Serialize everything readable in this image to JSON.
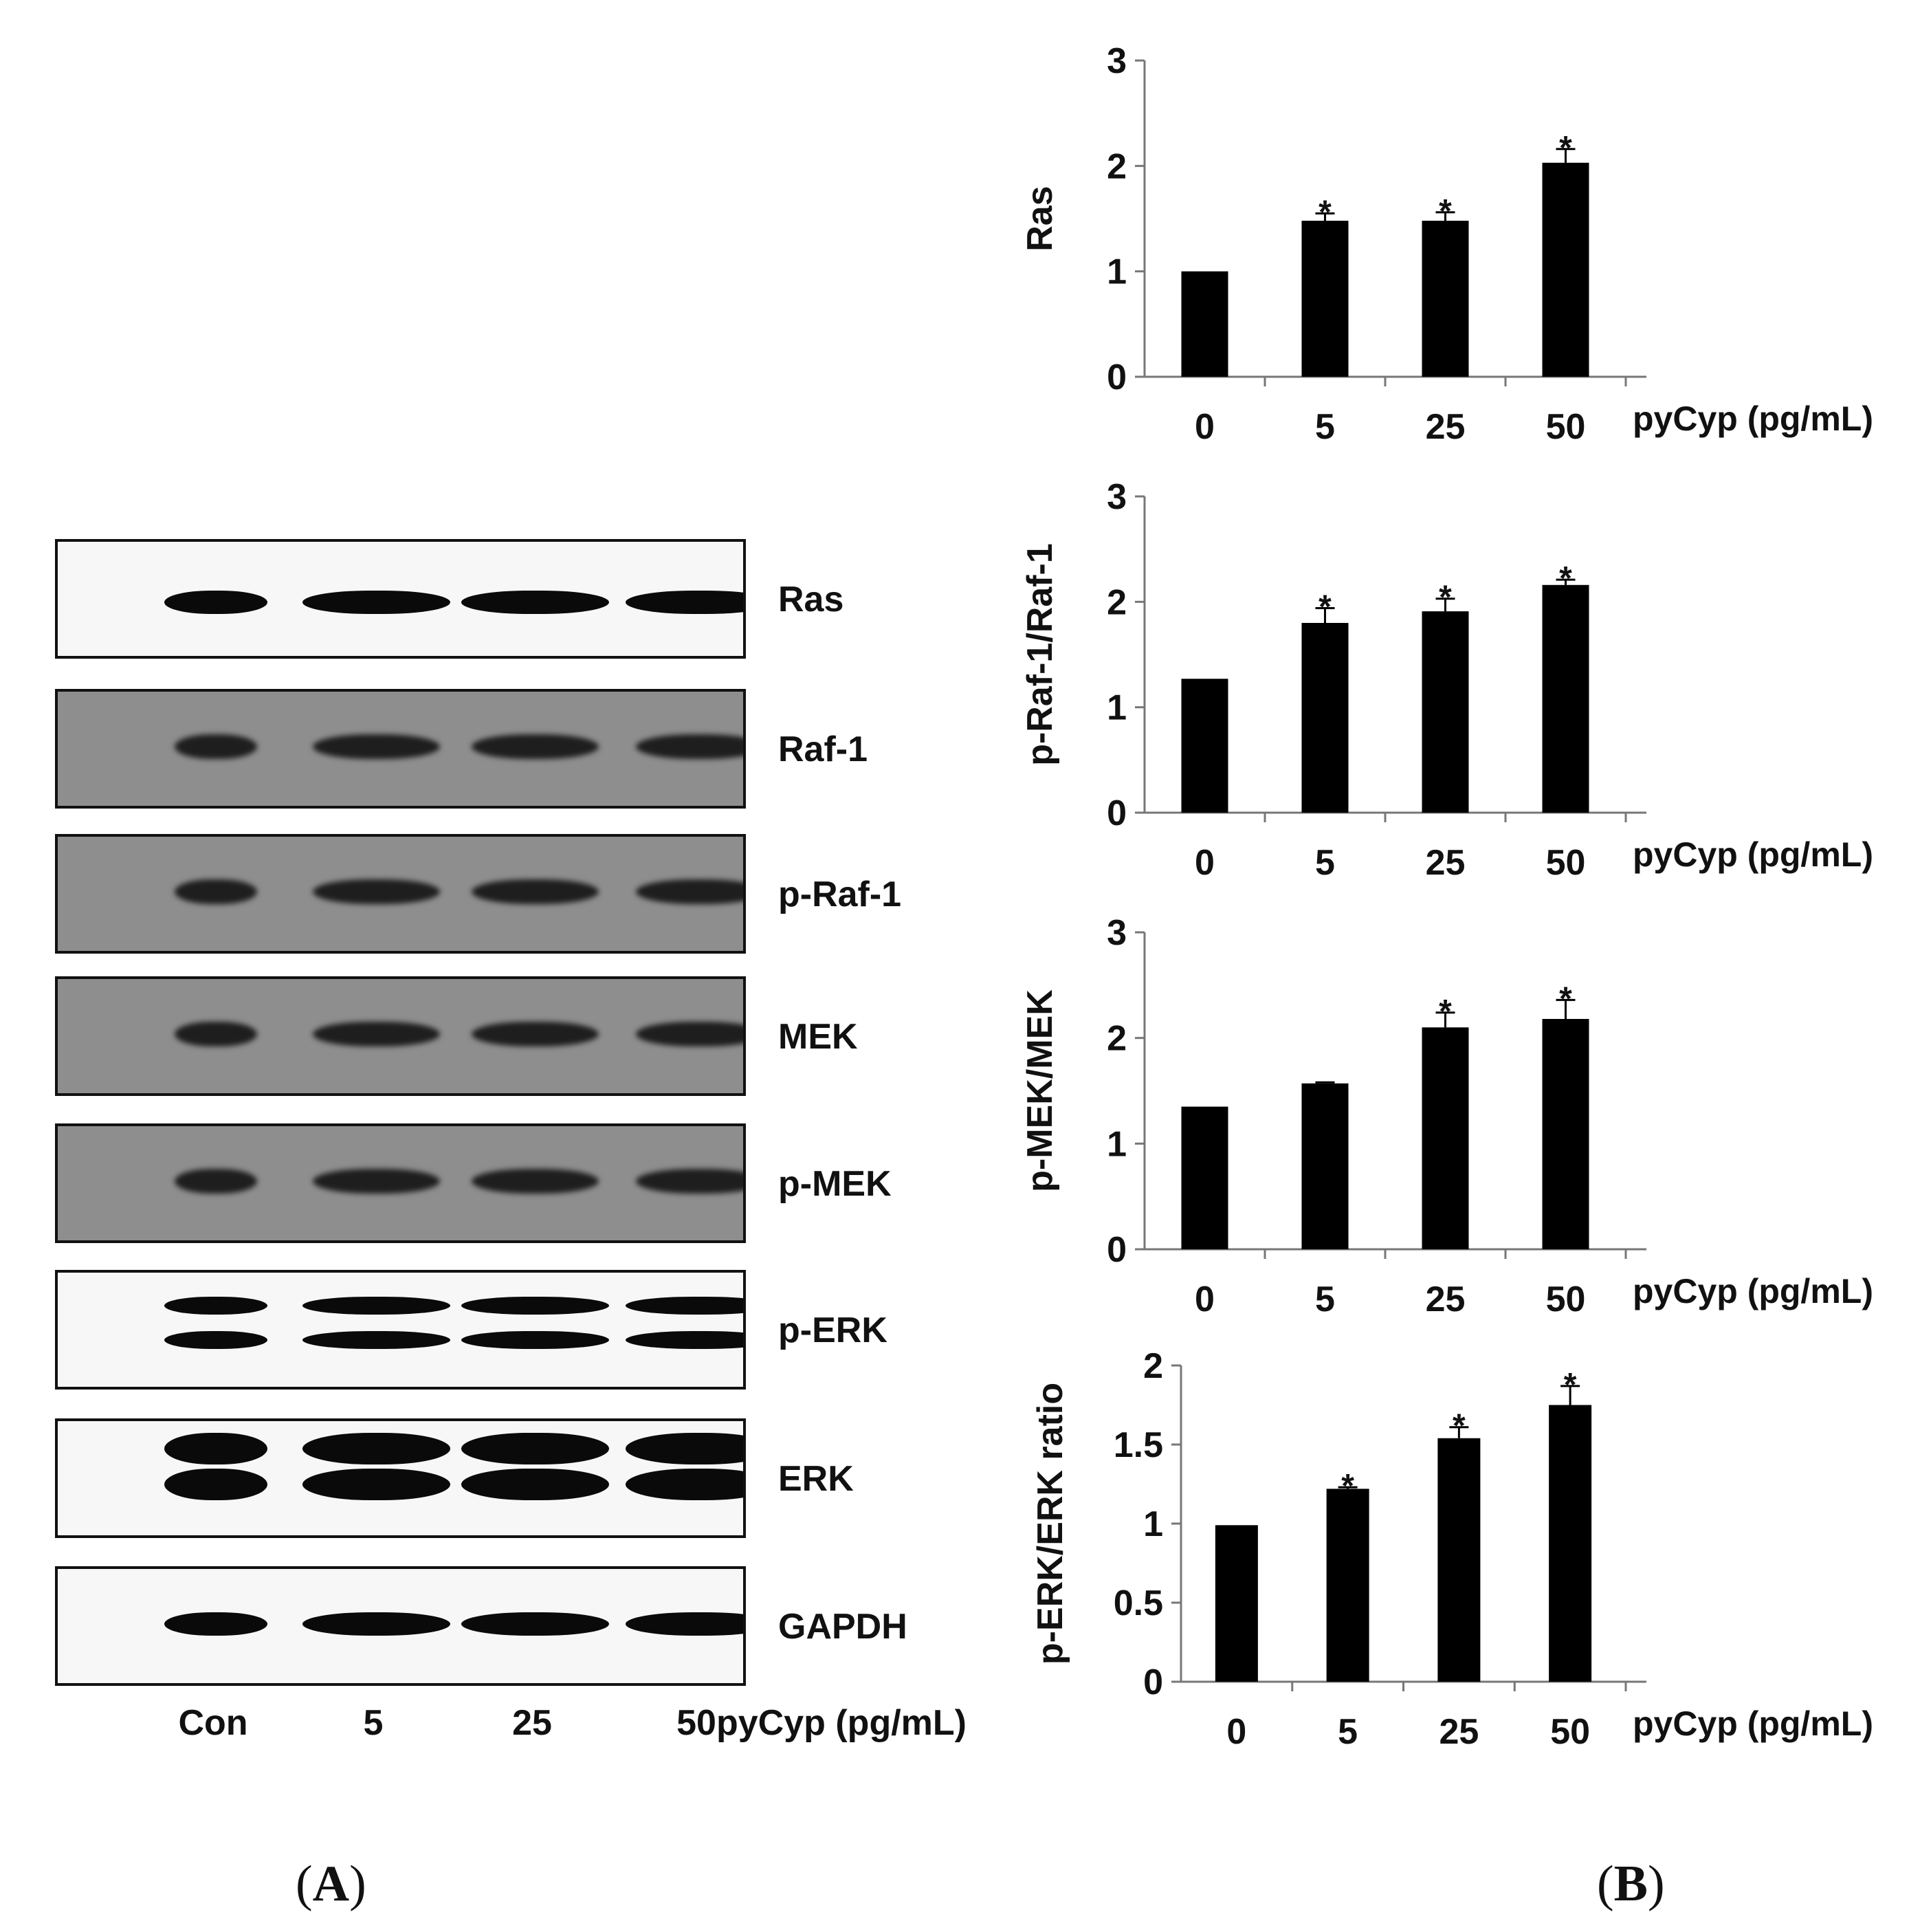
{
  "panel_a": {
    "letter": "A",
    "blots": [
      {
        "label": "Ras",
        "style": "white",
        "bands": 1
      },
      {
        "label": "Raf-1",
        "style": "gray",
        "bands": 1
      },
      {
        "label": "p-Raf-1",
        "style": "gray",
        "bands": 1
      },
      {
        "label": "MEK",
        "style": "gray",
        "bands": 1
      },
      {
        "label": "p-MEK",
        "style": "gray",
        "bands": 1
      },
      {
        "label": "p-ERK",
        "style": "white",
        "bands": 2
      },
      {
        "label": "ERK",
        "style": "white",
        "bands": 2
      },
      {
        "label": "GAPDH",
        "style": "white",
        "bands": 1
      }
    ],
    "lanes": [
      "Con",
      "5",
      "25",
      "50"
    ],
    "unit": "pyCyp (pg/mL)"
  },
  "panel_b": {
    "letter": "B"
  },
  "chart_data": [
    {
      "type": "bar",
      "categories": [
        "0",
        "5",
        "25",
        "50"
      ],
      "values": [
        1.0,
        1.48,
        1.48,
        2.03
      ],
      "errors": [
        0.0,
        0.07,
        0.08,
        0.13
      ],
      "significant": [
        false,
        true,
        true,
        true
      ],
      "ylabel": "Ras",
      "xlabel": "pyCyp (pg/mL)",
      "ylim": [
        0,
        3
      ],
      "yticks": [
        "0",
        "1",
        "2",
        "3"
      ],
      "grid": false
    },
    {
      "type": "bar",
      "categories": [
        "0",
        "5",
        "25",
        "50"
      ],
      "values": [
        1.27,
        1.8,
        1.91,
        2.16
      ],
      "errors": [
        0.0,
        0.14,
        0.12,
        0.05
      ],
      "significant": [
        false,
        true,
        true,
        true
      ],
      "ylabel": "p-Raf-1/Raf-1",
      "xlabel": "pyCyp (pg/mL)",
      "ylim": [
        0,
        3
      ],
      "yticks": [
        "0",
        "1",
        "2",
        "3"
      ],
      "grid": false
    },
    {
      "type": "bar",
      "categories": [
        "0",
        "5",
        "25",
        "50"
      ],
      "values": [
        1.35,
        1.57,
        2.1,
        2.18
      ],
      "errors": [
        0.0,
        0.01,
        0.14,
        0.18
      ],
      "significant": [
        false,
        false,
        true,
        true
      ],
      "ylabel": "p-MEK/MEK",
      "xlabel": "pyCyp (pg/mL)",
      "ylim": [
        0,
        3
      ],
      "yticks": [
        "0",
        "1",
        "2",
        "3"
      ],
      "grid": false
    },
    {
      "type": "bar",
      "categories": [
        "0",
        "5",
        "25",
        "50"
      ],
      "values": [
        0.99,
        1.22,
        1.54,
        1.75
      ],
      "errors": [
        0.0,
        0.01,
        0.07,
        0.12
      ],
      "significant": [
        false,
        true,
        true,
        true
      ],
      "ylabel": "p-ERK/ERK ratio",
      "xlabel": "pyCyp (pg/mL)",
      "ylim": [
        0,
        2
      ],
      "yticks": [
        "0",
        "0.5",
        "1",
        "1.5",
        "2"
      ],
      "grid": false
    }
  ]
}
